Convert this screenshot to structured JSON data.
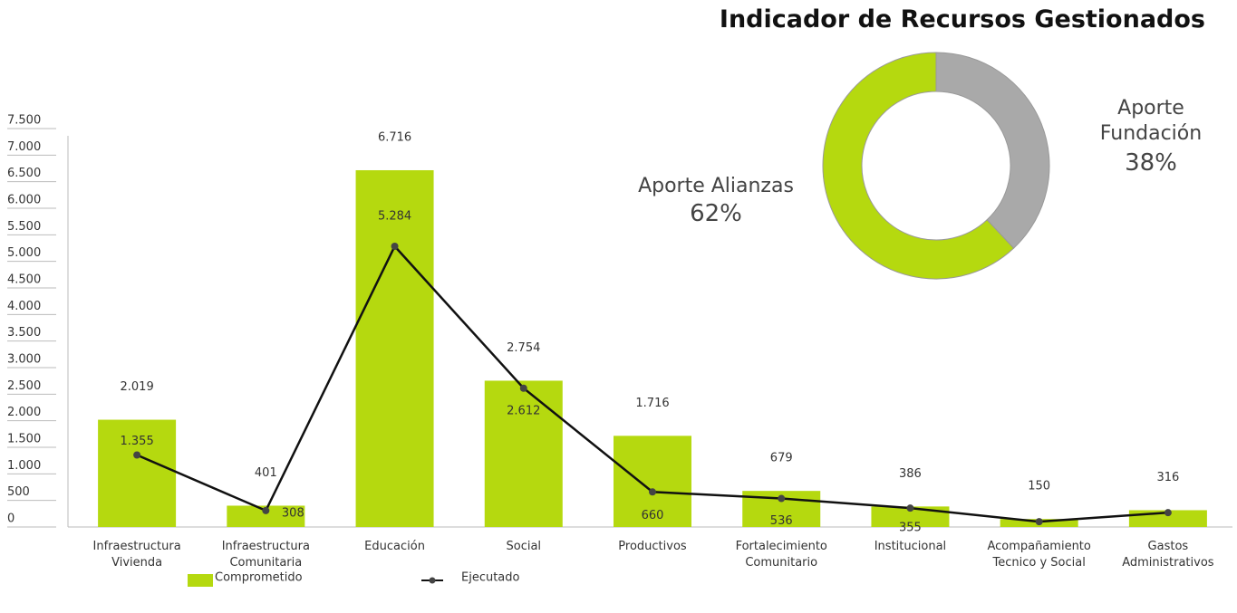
{
  "chart_data": [
    {
      "type": "bar-line",
      "categories": [
        "Infraestructura Vivienda",
        "Infraestructura Comunitaria",
        "Educación",
        "Social",
        "Productivos",
        "Fortalecimiento Comunitario",
        "Institucional",
        "Acompañamiento Tecnico y Social",
        "Gastos Administrativos"
      ],
      "series": [
        {
          "name": "Comprometido",
          "color": "#b5d90f",
          "kind": "bar",
          "values": [
            2019,
            401,
            6716,
            2754,
            1716,
            679,
            386,
            150,
            316
          ],
          "value_labels": [
            "2.019",
            "401",
            "6.716",
            "2.754",
            "1.716",
            "679",
            "386",
            "150",
            "316"
          ]
        },
        {
          "name": "Ejecutado",
          "color": "#111111",
          "kind": "line",
          "values": [
            1355,
            308,
            5284,
            2612,
            660,
            536,
            355,
            100,
            270
          ],
          "value_labels": [
            "1.355",
            "308",
            "5.284",
            "2.612",
            "660",
            "536",
            "355",
            null,
            null
          ]
        }
      ],
      "ylim": [
        0,
        7500
      ],
      "yticks": [
        0,
        500,
        {
          "value": 1000,
          "label": "1.000"
        },
        {
          "value": 1500,
          "label": "1.500"
        },
        {
          "value": 2000,
          "label": "2.000"
        },
        {
          "value": 2500,
          "label": "2.500"
        },
        {
          "value": 3000,
          "label": "3.000"
        },
        {
          "value": 3500,
          "label": "3.500"
        },
        {
          "value": 4000,
          "label": "4.000"
        },
        {
          "value": 4500,
          "label": "4.500"
        },
        {
          "value": 5000,
          "label": "5.000"
        },
        {
          "value": 5500,
          "label": "5.500"
        },
        {
          "value": 6000,
          "label": "6.000"
        },
        {
          "value": 6500,
          "label": "6.500"
        },
        {
          "value": 7000,
          "label": "7.000"
        },
        {
          "value": 7500,
          "label": "7.500"
        }
      ],
      "grid": false
    },
    {
      "type": "donut",
      "title": "Indicador de Recursos Gestionados",
      "categories": [
        "Aporte Fundación",
        "Aporte Alianzas"
      ],
      "values": [
        38,
        62
      ],
      "value_labels": [
        "38%",
        "62%"
      ],
      "colors": [
        "#a9a9a9",
        "#b5d90f"
      ]
    }
  ]
}
